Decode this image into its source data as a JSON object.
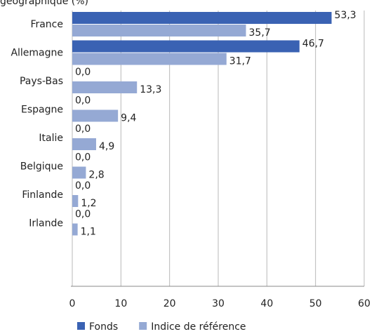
{
  "chart_data": {
    "type": "bar",
    "orientation": "horizontal",
    "title": "géographique (%)",
    "categories": [
      "France",
      "Allemagne",
      "Pays-Bas",
      "Espagne",
      "Italie",
      "Belgique",
      "Finlande",
      "Irlande"
    ],
    "series": [
      {
        "name": "Fonds",
        "color": "#3a62b3",
        "values": [
          53.3,
          46.7,
          0,
          0,
          0,
          0,
          0,
          0
        ],
        "value_labels": [
          "53,3",
          "46,7",
          "0,0",
          "0,0",
          "0,0",
          "0,0",
          "0,0",
          "0,0"
        ]
      },
      {
        "name": "Indice de référence",
        "color": "#95a9d4",
        "values": [
          35.7,
          31.7,
          13.3,
          9.4,
          4.9,
          2.8,
          1.2,
          1.1
        ],
        "value_labels": [
          "35,7",
          "31,7",
          "13,3",
          "9,4",
          "4,9",
          "2,8",
          "1,2",
          "1,1"
        ]
      }
    ],
    "xlim": [
      0,
      60
    ],
    "xticks": [
      0,
      10,
      20,
      30,
      40,
      50,
      60
    ],
    "grid": true,
    "legend": "bottom"
  }
}
